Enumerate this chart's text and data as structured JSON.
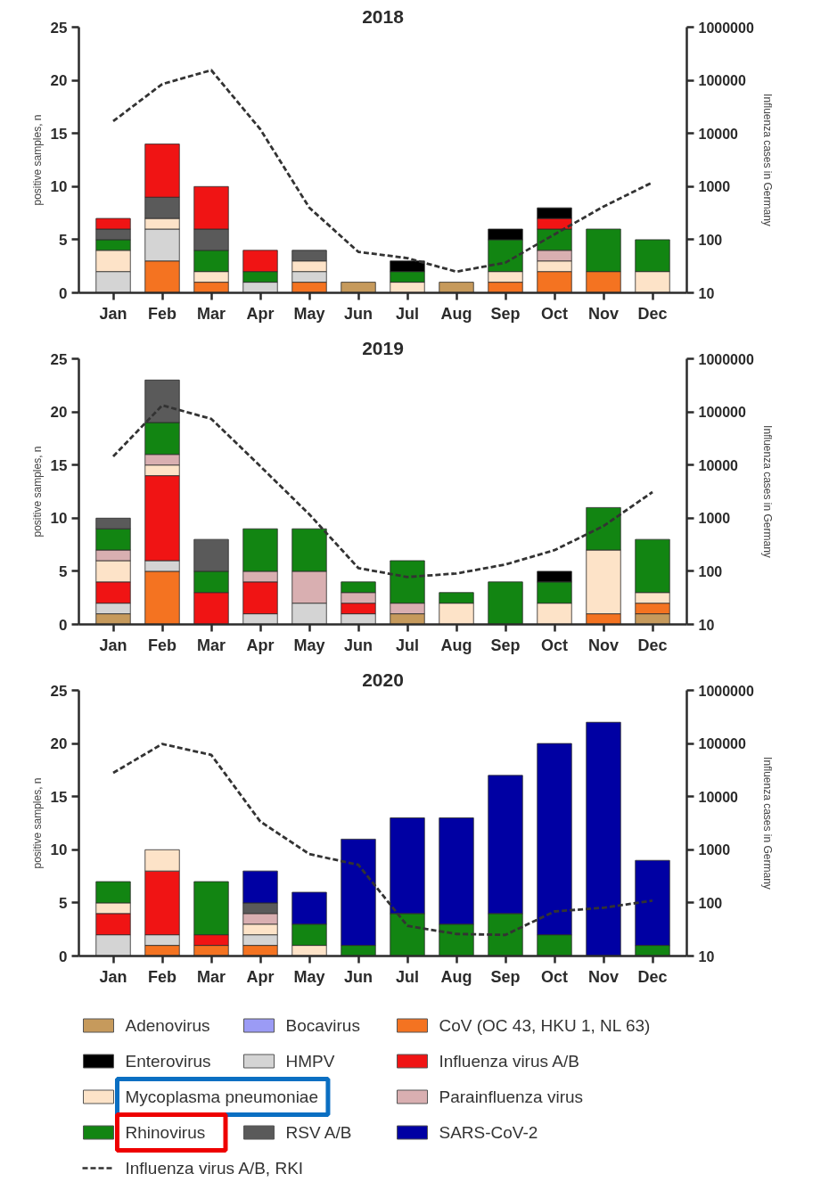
{
  "chart_data": [
    {
      "type": "bar",
      "stacked": true,
      "title": "2018",
      "ylabel": "positive samples, n",
      "y2label": "Influenza cases in Germany",
      "categories": [
        "Jan",
        "Feb",
        "Mar",
        "Apr",
        "May",
        "Jun",
        "Jul",
        "Aug",
        "Sep",
        "Oct",
        "Nov",
        "Dec"
      ],
      "ylim": [
        0,
        25
      ],
      "yticks": [
        0,
        5,
        10,
        15,
        20,
        25
      ],
      "y2lim": [
        10,
        1000000
      ],
      "y2ticks": [
        10,
        100,
        1000,
        10000,
        100000,
        1000000
      ],
      "log": "y2",
      "line_style": "dashed",
      "series": [
        {
          "color": "#c69a5c",
          "values": [
            0,
            0,
            0,
            0,
            0,
            1,
            0,
            1,
            0,
            0,
            0,
            0
          ]
        },
        {
          "color": "#f47321",
          "values": [
            0,
            3,
            1,
            0,
            1,
            0,
            0,
            0,
            1,
            2,
            2,
            0
          ]
        },
        {
          "color": "#d4d4d4",
          "values": [
            2,
            3,
            0,
            1,
            1,
            0,
            0,
            0,
            0,
            0,
            0,
            0
          ]
        },
        {
          "color": "#fde3c8",
          "values": [
            2,
            1,
            1,
            0,
            1,
            0,
            1,
            0,
            1,
            1,
            0,
            2
          ]
        },
        {
          "color": "#d9afb1",
          "values": [
            0,
            0,
            0,
            0,
            0,
            0,
            0,
            0,
            0,
            1,
            0,
            0
          ]
        },
        {
          "color": "#128512",
          "values": [
            1,
            0,
            2,
            1,
            0,
            0,
            1,
            0,
            3,
            2,
            4,
            3
          ]
        },
        {
          "color": "#5a5a5a",
          "values": [
            1,
            2,
            2,
            0,
            1,
            0,
            0,
            0,
            0,
            0,
            0,
            0
          ]
        },
        {
          "color": "#f01414",
          "values": [
            1,
            5,
            4,
            2,
            0,
            0,
            0,
            0,
            0,
            1,
            0,
            0
          ]
        },
        {
          "color": "#000000",
          "values": [
            0,
            0,
            0,
            0,
            0,
            0,
            1,
            0,
            1,
            1,
            0,
            0
          ]
        },
        {
          "type": "line",
          "axis": "y2",
          "color": "#333333",
          "values": [
            17000,
            85000,
            155000,
            12000,
            400,
            59,
            45,
            25,
            37,
            126,
            420,
            1200
          ]
        }
      ]
    },
    {
      "type": "bar",
      "stacked": true,
      "title": "2019",
      "ylabel": "positive samples, n",
      "y2label": "Influenza cases in Germany",
      "categories": [
        "Jan",
        "Feb",
        "Mar",
        "Apr",
        "May",
        "Jun",
        "Jul",
        "Aug",
        "Sep",
        "Oct",
        "Nov",
        "Dec"
      ],
      "ylim": [
        0,
        25
      ],
      "yticks": [
        0,
        5,
        10,
        15,
        20,
        25
      ],
      "y2lim": [
        10,
        1000000
      ],
      "y2ticks": [
        10,
        100,
        1000,
        10000,
        100000,
        1000000
      ],
      "log": "y2",
      "line_style": "dashed",
      "series": [
        {
          "color": "#c69a5c",
          "values": [
            1,
            0,
            0,
            0,
            0,
            0,
            1,
            0,
            0,
            0,
            0,
            1
          ]
        },
        {
          "color": "#f47321",
          "values": [
            0,
            5,
            0,
            0,
            0,
            0,
            0,
            0,
            0,
            0,
            1,
            1
          ]
        },
        {
          "color": "#d4d4d4",
          "values": [
            1,
            1,
            0,
            1,
            2,
            1,
            0,
            0,
            0,
            0,
            0,
            0
          ]
        },
        {
          "color": "#f01414",
          "values": [
            2,
            8,
            3,
            3,
            0,
            1,
            0,
            0,
            0,
            0,
            0,
            0
          ]
        },
        {
          "color": "#fde3c8",
          "values": [
            2,
            1,
            0,
            0,
            0,
            0,
            0,
            2,
            0,
            2,
            6,
            1
          ]
        },
        {
          "color": "#d9afb1",
          "values": [
            1,
            1,
            0,
            1,
            3,
            1,
            1,
            0,
            0,
            0,
            0,
            0
          ]
        },
        {
          "color": "#128512",
          "values": [
            2,
            3,
            2,
            4,
            4,
            1,
            4,
            1,
            4,
            2,
            4,
            5
          ]
        },
        {
          "color": "#5a5a5a",
          "values": [
            1,
            4,
            3,
            0,
            0,
            0,
            0,
            0,
            0,
            0,
            0,
            0
          ]
        },
        {
          "color": "#000000",
          "values": [
            0,
            0,
            0,
            0,
            0,
            0,
            0,
            0,
            0,
            1,
            0,
            0
          ]
        },
        {
          "type": "line",
          "axis": "y2",
          "color": "#333333",
          "values": [
            14500,
            133000,
            74000,
            9500,
            1180,
            115,
            78,
            91,
            134,
            250,
            710,
            3100
          ]
        }
      ]
    },
    {
      "type": "bar",
      "stacked": true,
      "title": "2020",
      "ylabel": "positive samples, n",
      "y2label": "Influenza cases in Germany",
      "categories": [
        "Jan",
        "Feb",
        "Mar",
        "Apr",
        "May",
        "Jun",
        "Jul",
        "Aug",
        "Sep",
        "Oct",
        "Nov",
        "Dec"
      ],
      "ylim": [
        0,
        25
      ],
      "yticks": [
        0,
        5,
        10,
        15,
        20,
        25
      ],
      "y2lim": [
        10,
        1000000
      ],
      "y2ticks": [
        10,
        100,
        1000,
        10000,
        100000,
        1000000
      ],
      "log": "y2",
      "line_style": "dashed",
      "legend": "bottom",
      "series": [
        {
          "name": "Adenovirus",
          "color": "#c69a5c",
          "values": [
            0,
            0,
            0,
            0,
            0,
            0,
            0,
            0,
            0,
            0,
            0,
            0
          ]
        },
        {
          "name": "Bocavirus",
          "color": "#9b9bf5",
          "values": [
            0,
            0,
            0,
            0,
            0,
            0,
            0,
            0,
            0,
            0,
            0,
            0
          ]
        },
        {
          "name": "CoV (OC 43, HKU 1, NL 63)",
          "color": "#f47321",
          "values": [
            0,
            1,
            1,
            1,
            0,
            0,
            0,
            0,
            0,
            0,
            0,
            0
          ]
        },
        {
          "name": "Enterovirus",
          "color": "#000000",
          "values": [
            0,
            0,
            0,
            0,
            0,
            0,
            0,
            0,
            0,
            0,
            0,
            0
          ]
        },
        {
          "name": "HMPV",
          "color": "#d4d4d4",
          "values": [
            2,
            1,
            0,
            1,
            0,
            0,
            0,
            0,
            0,
            0,
            0,
            0
          ]
        },
        {
          "name": "Influenza virus A/B",
          "color": "#f01414",
          "values": [
            2,
            6,
            1,
            0,
            0,
            0,
            0,
            0,
            0,
            0,
            0,
            0
          ]
        },
        {
          "name": "Mycoplasma pneumoniae",
          "color": "#fde3c8",
          "values": [
            1,
            2,
            0,
            1,
            1,
            0,
            0,
            0,
            0,
            0,
            0,
            0
          ]
        },
        {
          "name": "Parainfluenza virus",
          "color": "#d9afb1",
          "values": [
            0,
            0,
            0,
            1,
            0,
            0,
            0,
            0,
            0,
            0,
            0,
            0
          ]
        },
        {
          "name": "Rhinovirus",
          "color": "#128512",
          "values": [
            2,
            0,
            5,
            0,
            2,
            1,
            4,
            3,
            4,
            2,
            0,
            1
          ]
        },
        {
          "name": "RSV A/B",
          "color": "#5a5a5a",
          "values": [
            0,
            0,
            0,
            1,
            0,
            0,
            0,
            0,
            0,
            0,
            0,
            0
          ]
        },
        {
          "name": "SARS-CoV-2",
          "color": "#0000a3",
          "values": [
            0,
            0,
            0,
            3,
            3,
            10,
            9,
            10,
            13,
            18,
            22,
            8
          ]
        },
        {
          "type": "line",
          "axis": "y2",
          "name": "Influenza virus A/B, RKI",
          "color": "#333333",
          "values": [
            28000,
            98000,
            61000,
            3400,
            830,
            520,
            37,
            26,
            25,
            69,
            81,
            110
          ]
        }
      ]
    }
  ]
}
